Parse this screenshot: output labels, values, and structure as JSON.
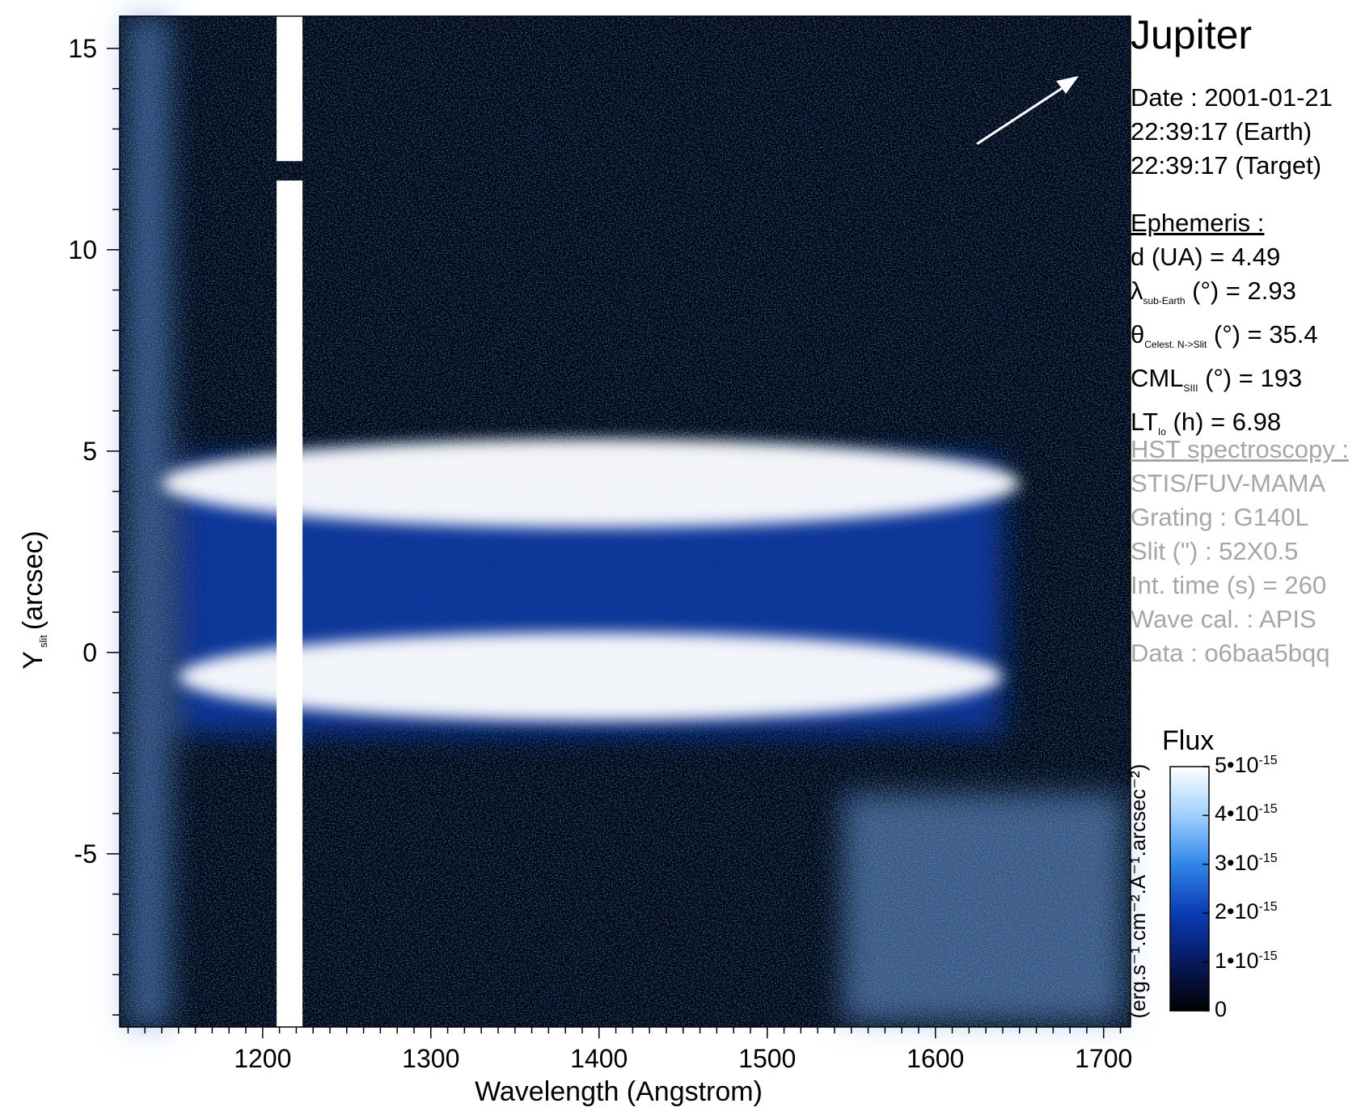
{
  "chart_data": {
    "type": "heatmap",
    "title": "Jupiter",
    "xlabel": "Wavelength (Angstrom)",
    "ylabel_main": "Y",
    "ylabel_sub": "slit",
    "ylabel_unit": "(arcsec)",
    "xlim": [
      1115,
      1716
    ],
    "ylim": [
      -9.3,
      15.8
    ],
    "x_ticks": [
      1200,
      1300,
      1400,
      1500,
      1600,
      1700
    ],
    "y_ticks": [
      15,
      10,
      5,
      0,
      -5
    ],
    "x_tick_labels": [
      "1200",
      "1300",
      "1400",
      "1500",
      "1600",
      "1700"
    ],
    "y_tick_labels": [
      "15",
      "10",
      "5",
      "0",
      "-5"
    ],
    "emission_bands": [
      {
        "label": "upper auroral band",
        "y_center": 4.2,
        "x_start": 1140,
        "x_end": 1650
      },
      {
        "label": "lower auroral band",
        "y_center": -0.6,
        "x_start": 1150,
        "x_end": 1640
      }
    ],
    "lyman_alpha_line": {
      "x": 1216,
      "y_gap": 12.0
    },
    "colorbar": {
      "title": "Flux",
      "units_label": "(erg.s⁻¹.cm⁻².A⁻¹.arcsec⁻²)",
      "range": [
        0,
        5e-15
      ],
      "ticks": [
        {
          "value": 0,
          "mant": "0",
          "exp": ""
        },
        {
          "value": 1e-15,
          "mant": "1•10",
          "exp": "-15"
        },
        {
          "value": 2e-15,
          "mant": "2•10",
          "exp": "-15"
        },
        {
          "value": 3e-15,
          "mant": "3•10",
          "exp": "-15"
        },
        {
          "value": 4e-15,
          "mant": "4•10",
          "exp": "-15"
        },
        {
          "value": 5e-15,
          "mant": "5•10",
          "exp": "-15"
        }
      ],
      "colors": [
        "#000000",
        "#081a5e",
        "#0a3bb4",
        "#2f86e8",
        "#9fd0ff",
        "#ffffff"
      ]
    },
    "grid": false
  },
  "info": {
    "title": "Jupiter",
    "date": "Date : 2001-01-21",
    "time_earth": "22:39:17 (Earth)",
    "time_target": "22:39:17 (Target)",
    "ephemeris_header": "Ephemeris :",
    "eph": {
      "d": "d (UA)     = 4.49",
      "lambda_sym": "λ",
      "lambda_sub": "sub-Earth",
      "lambda_rest": " (°)  = 2.93",
      "theta_sym": "θ",
      "theta_sub": "Celest. N->Slit",
      "theta_rest": " (°) = 35.4",
      "cml_sym": "CML",
      "cml_sub": "SIII",
      "cml_rest": " (°) = 193",
      "lt_sym": "LT",
      "lt_sub": "Io",
      "lt_rest": " (h) = 6.98"
    },
    "hst_header": "HST spectroscopy :",
    "instrument": "STIS/FUV-MAMA",
    "grating": "Grating : G140L",
    "slit": "Slit (\") : 52X0.5",
    "int_time": "Int. time (s) = 260",
    "wave_cal": "Wave cal. : APIS",
    "data_id": "Data : o6baa5bqq"
  },
  "colors": {
    "background": "#000000",
    "noise_blue": "#0b2f8f",
    "bright": "#ffffff",
    "info_gray": "#a6a6a6"
  }
}
